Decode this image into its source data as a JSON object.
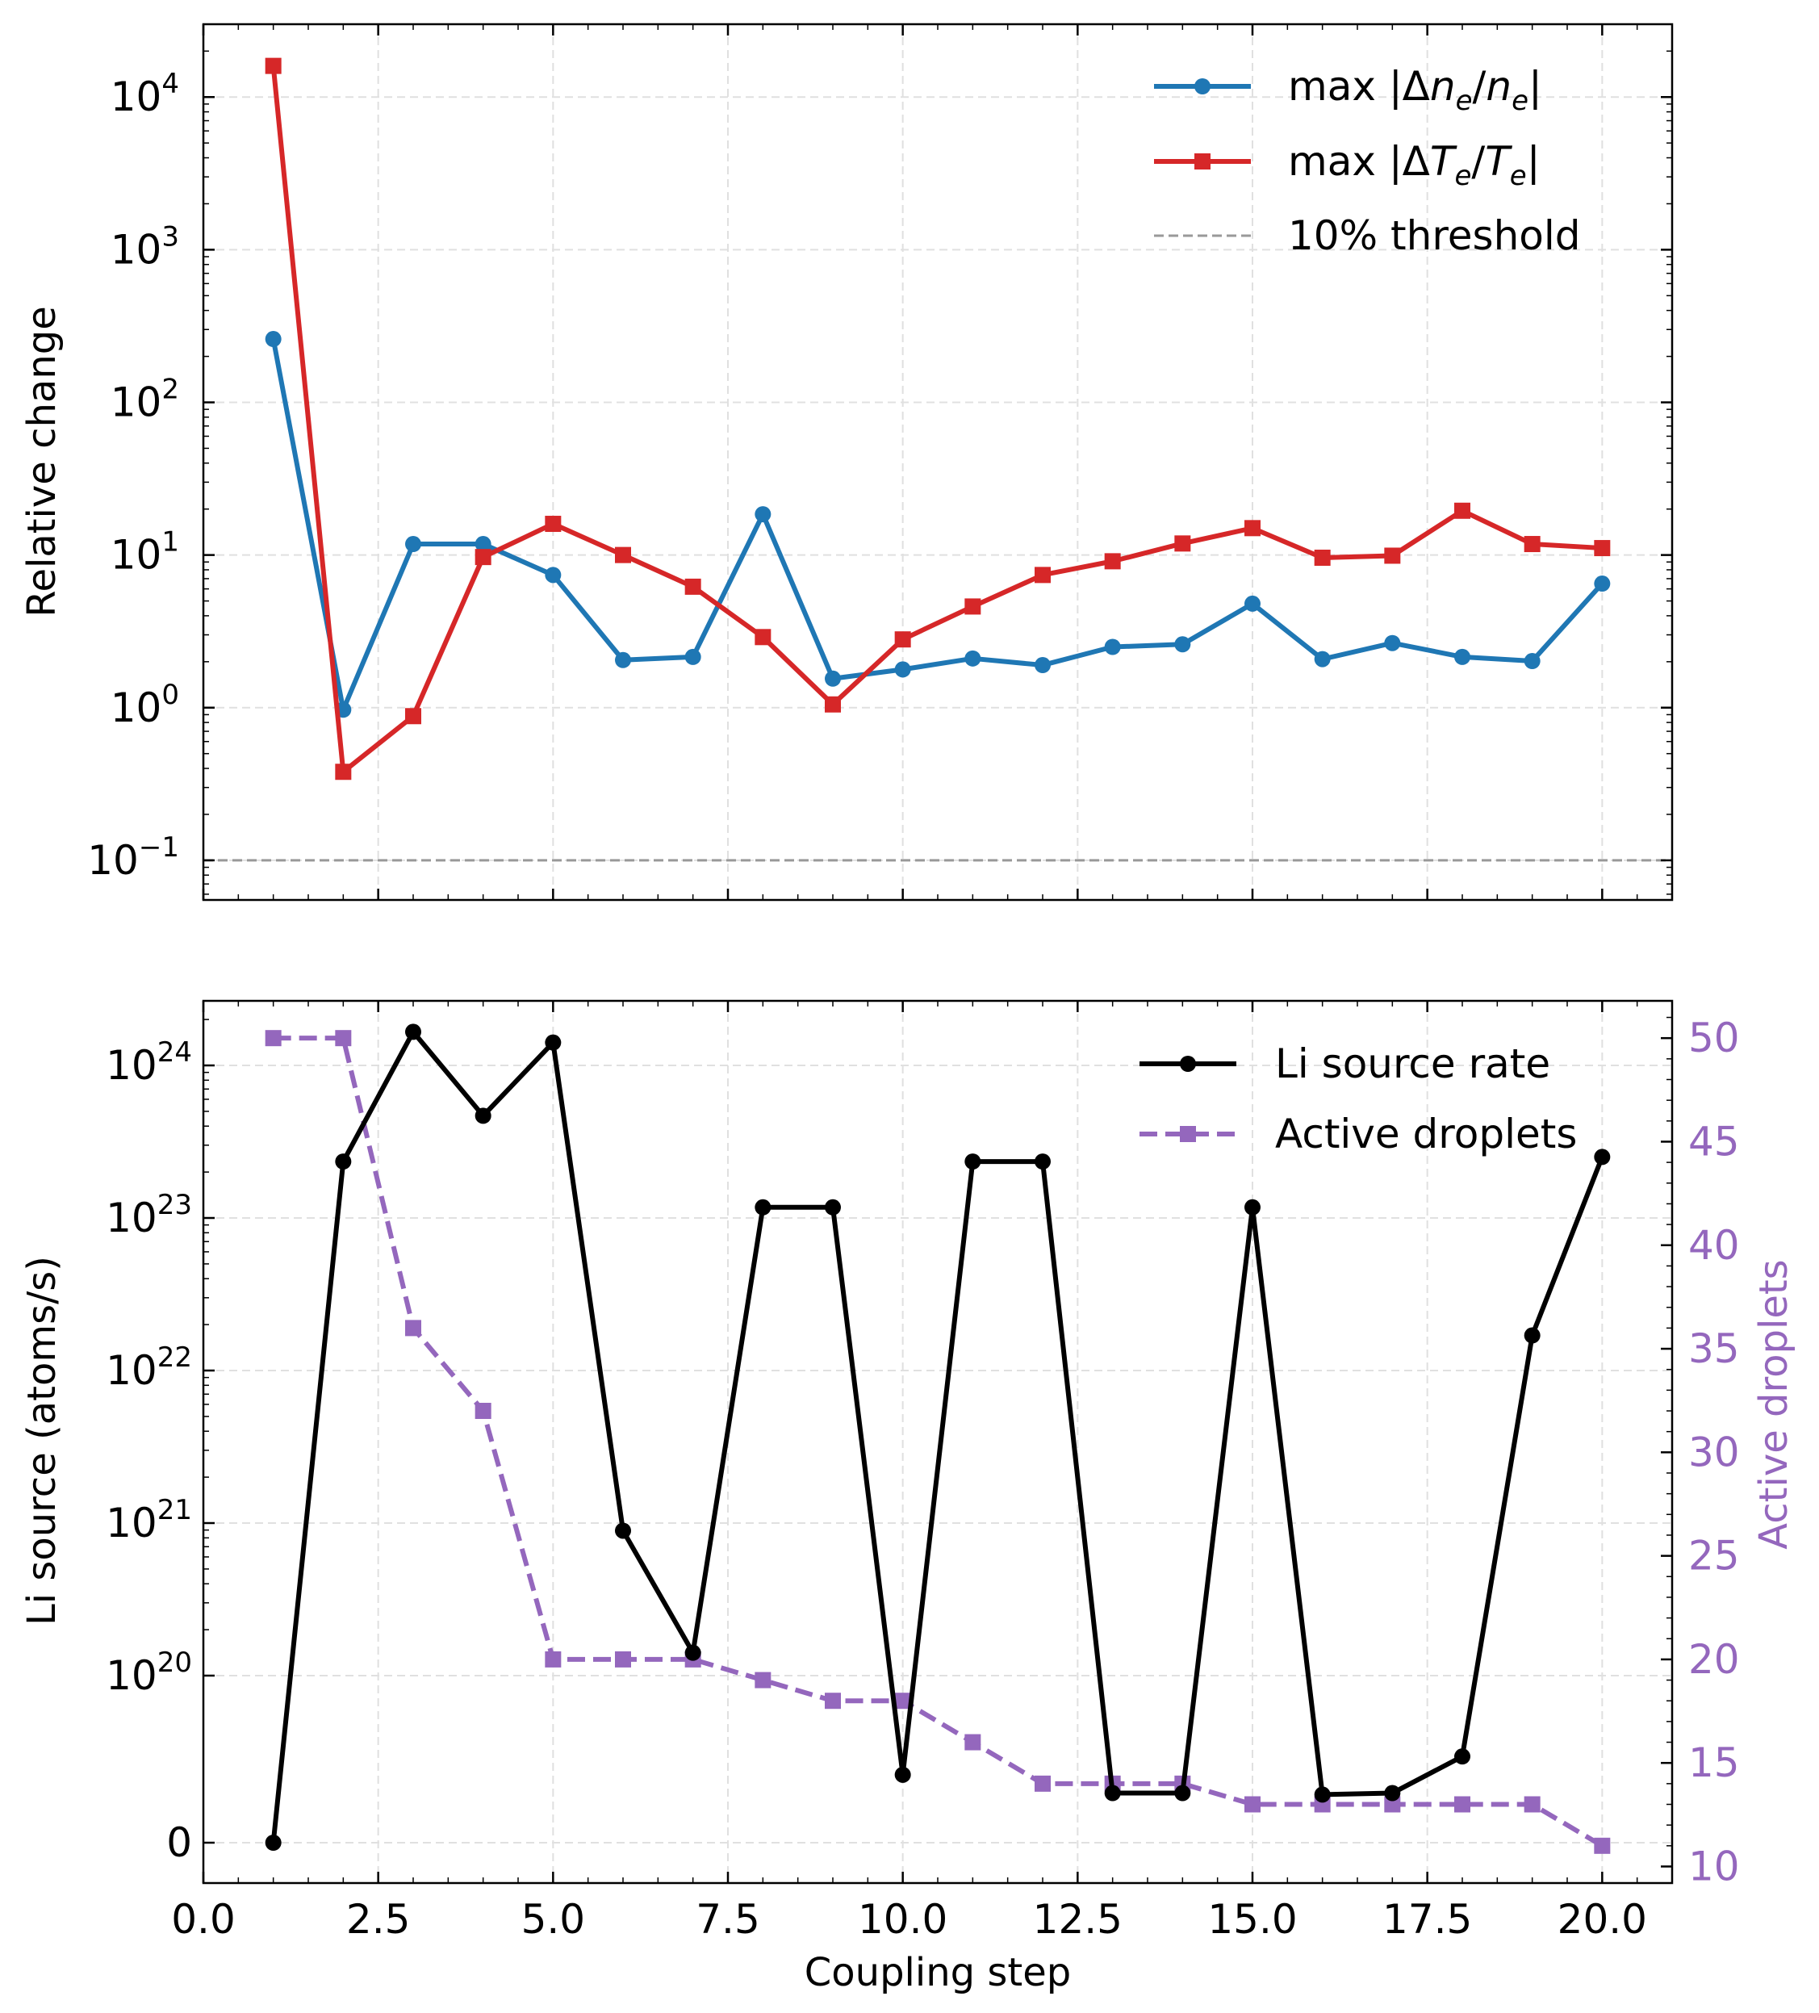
{
  "chart_data": [
    {
      "type": "line",
      "yscale": "log",
      "xlabel": "",
      "ylabel": "Relative change",
      "xlim": [
        0.0,
        21.0
      ],
      "ylim": [
        0.055,
        30000
      ],
      "grid": true,
      "legend_position": "top-right",
      "yticks": [
        {
          "value": 0.1,
          "base": "10",
          "exp": "−1"
        },
        {
          "value": 1,
          "base": "10",
          "exp": "0"
        },
        {
          "value": 10,
          "base": "10",
          "exp": "1"
        },
        {
          "value": 100,
          "base": "10",
          "exp": "2"
        },
        {
          "value": 1000,
          "base": "10",
          "exp": "3"
        },
        {
          "value": 10000,
          "base": "10",
          "exp": "4"
        }
      ],
      "x": [
        1,
        2,
        3,
        4,
        5,
        6,
        7,
        8,
        9,
        10,
        11,
        12,
        13,
        14,
        15,
        16,
        17,
        18,
        19,
        20
      ],
      "series": [
        {
          "name": "max |Δn_e/n_e|",
          "legend_parts": [
            "max |Δ",
            "n",
            "e",
            "/",
            "n",
            "e",
            "|"
          ],
          "color": "#1f77b4",
          "marker": "circle",
          "values": [
            260,
            0.97,
            11.8,
            11.8,
            7.4,
            2.05,
            2.15,
            18.5,
            1.55,
            1.78,
            2.1,
            1.9,
            2.5,
            2.6,
            4.8,
            2.08,
            2.65,
            2.15,
            2.02,
            6.5
          ]
        },
        {
          "name": "max |ΔT_e/T_e|",
          "legend_parts": [
            "max |Δ",
            "T",
            "e",
            "/",
            "T",
            "e",
            "|"
          ],
          "color": "#d62728",
          "marker": "square",
          "values": [
            16000,
            0.38,
            0.88,
            9.7,
            16,
            10,
            6.2,
            2.9,
            1.05,
            2.8,
            4.6,
            7.4,
            9.1,
            11.9,
            15,
            9.6,
            9.9,
            19.5,
            11.8,
            11.1
          ]
        }
      ],
      "threshold": {
        "name": "10% threshold",
        "value": 0.1,
        "color": "#999999"
      }
    },
    {
      "type": "line",
      "yscale": "symlog",
      "xlabel": "Coupling step",
      "ylabel": "Li source (atoms/s)",
      "xlim": [
        0.0,
        21.0
      ],
      "grid": true,
      "legend_position": "top-right",
      "xticks": [
        "0.0",
        "2.5",
        "5.0",
        "7.5",
        "10.0",
        "12.5",
        "15.0",
        "17.5",
        "20.0"
      ],
      "yticks_left": [
        {
          "value": "0",
          "base": "0",
          "exp": ""
        },
        {
          "value": "1e20",
          "base": "10",
          "exp": "20"
        },
        {
          "value": "1e21",
          "base": "10",
          "exp": "21"
        },
        {
          "value": "1e22",
          "base": "10",
          "exp": "22"
        },
        {
          "value": "1e23",
          "base": "10",
          "exp": "23"
        },
        {
          "value": "1e24",
          "base": "10",
          "exp": "24"
        }
      ],
      "y2label": "Active droplets",
      "y2lim": [
        9.2,
        51.8
      ],
      "yticks_right": [
        "10",
        "15",
        "20",
        "25",
        "30",
        "35",
        "40",
        "45",
        "50"
      ],
      "x": [
        1,
        2,
        3,
        4,
        5,
        6,
        7,
        8,
        9,
        10,
        11,
        12,
        13,
        14,
        15,
        16,
        17,
        18,
        19,
        20
      ],
      "series": [
        {
          "name": "Li source rate",
          "color": "#000000",
          "marker": "circle",
          "axis": "left",
          "log10_values": [
            null,
            23.37,
            24.22,
            23.67,
            24.15,
            20.95,
            20.15,
            23.07,
            23.07,
            19.35,
            23.37,
            23.37,
            19.23,
            19.23,
            23.07,
            19.22,
            19.23,
            19.47,
            22.23,
            23.4
          ]
        },
        {
          "name": "Active droplets",
          "color": "#9467bd",
          "marker": "square",
          "linestyle": "dashed",
          "axis": "right",
          "values": [
            50,
            50,
            36,
            32,
            20,
            20,
            20,
            19,
            18,
            18,
            16,
            14,
            14,
            14,
            13,
            13,
            13,
            13,
            13,
            11
          ]
        }
      ]
    }
  ]
}
